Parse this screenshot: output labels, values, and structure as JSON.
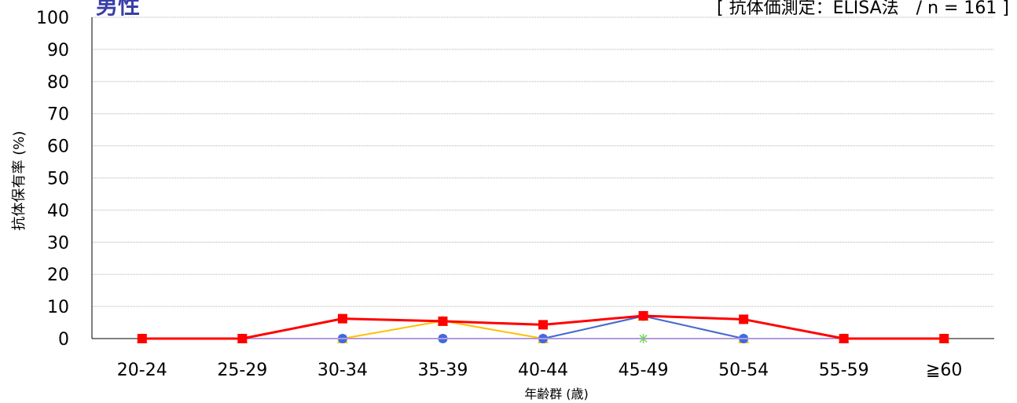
{
  "title": "男性",
  "subtitle": "[ 抗体価測定：ELISA法　/ n = 161 ]",
  "chart_data": {
    "type": "line",
    "ylabel": "抗体保有率 (%)",
    "xlabel": "年齢群 (歳)",
    "categories": [
      "20-24",
      "25-29",
      "30-34",
      "35-39",
      "40-44",
      "45-49",
      "50-54",
      "55-59",
      "≧60"
    ],
    "ylim": [
      0,
      100
    ],
    "yticks": [
      0,
      10,
      20,
      30,
      40,
      50,
      60,
      70,
      80,
      90,
      100
    ],
    "grid": true,
    "series": [
      {
        "color": "#ffc000",
        "marker": "triangle",
        "values": [
          0,
          0,
          0,
          5.5,
          0,
          7,
          0,
          0,
          0
        ]
      },
      {
        "color": "#66dd44",
        "marker": "star",
        "values": [
          0,
          0,
          0,
          0,
          0,
          0,
          0,
          0,
          0
        ]
      },
      {
        "color": "#4169e1",
        "marker": "circle",
        "values": [
          0,
          0,
          0,
          0,
          0,
          7,
          0,
          0,
          0
        ]
      },
      {
        "color": "#b399dd",
        "marker": "line",
        "values": [
          0,
          0,
          0,
          0,
          0,
          0,
          0,
          0,
          0
        ]
      },
      {
        "color": "#ff0000",
        "marker": "square",
        "values": [
          0,
          0,
          6.2,
          5.4,
          4.3,
          7.1,
          6,
          0,
          0
        ]
      }
    ]
  }
}
